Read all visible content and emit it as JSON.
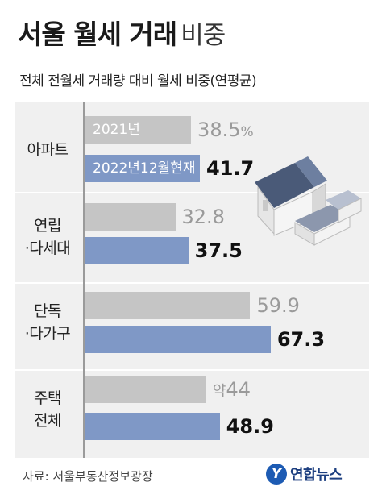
{
  "title": {
    "main": "서울 월세 거래",
    "light": "비중"
  },
  "subtitle": "전체 전월세 거래량 대비 월세 비중(연평균)",
  "legend": {
    "y2021": "2021년",
    "y2022": "2022년12월현재"
  },
  "source": "자료: 서울부동산정보광장",
  "logo": {
    "mark": "Y",
    "text": "연합뉴스"
  },
  "labels": {
    "apt": "아파트",
    "villa_1": "연립",
    "villa_2": "·다세대",
    "house_1": "단독",
    "house_2": "·다가구",
    "all_1": "주택",
    "all_2": "전체"
  },
  "chart_data": {
    "type": "bar",
    "orientation": "horizontal",
    "title": "서울 월세 거래 비중",
    "subtitle": "전체 전월세 거래량 대비 월세 비중(연평균)",
    "categories": [
      "아파트",
      "연립·다세대",
      "단독·다가구",
      "주택 전체"
    ],
    "series": [
      {
        "name": "2021년",
        "color": "#c5c5c5",
        "values": [
          38.5,
          32.8,
          59.9,
          44
        ]
      },
      {
        "name": "2022년12월현재",
        "color": "#7f98c6",
        "values": [
          41.7,
          37.5,
          67.3,
          48.9
        ]
      }
    ],
    "value_labels": {
      "2021": [
        "38.5",
        "32.8",
        "59.9",
        "44"
      ],
      "2022": [
        "41.7",
        "37.5",
        "67.3",
        "48.9"
      ]
    },
    "value_suffix_first": "%",
    "value_prefix_last_2021": "약",
    "xlabel": "",
    "ylabel": ""
  }
}
